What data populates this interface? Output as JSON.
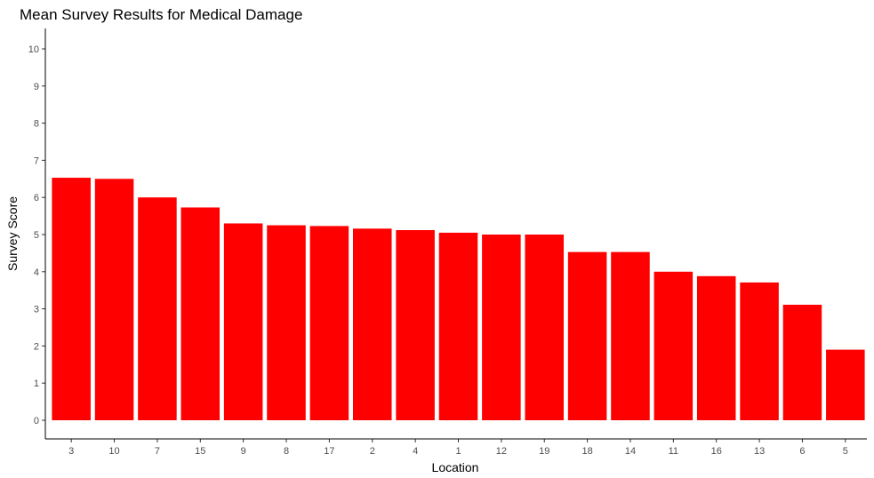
{
  "chart_data": {
    "type": "bar",
    "title": "Mean Survey Results for Medical Damage",
    "xlabel": "Location",
    "ylabel": "Survey Score",
    "ylim": [
      0,
      10
    ],
    "yticks": [
      0,
      1,
      2,
      3,
      4,
      5,
      6,
      7,
      8,
      9,
      10
    ],
    "categories": [
      "3",
      "10",
      "7",
      "15",
      "9",
      "8",
      "17",
      "2",
      "4",
      "1",
      "12",
      "19",
      "18",
      "14",
      "11",
      "16",
      "13",
      "6",
      "5"
    ],
    "values": [
      6.53,
      6.5,
      6.0,
      5.73,
      5.3,
      5.25,
      5.23,
      5.16,
      5.12,
      5.05,
      5.0,
      5.0,
      4.53,
      4.53,
      4.0,
      3.88,
      3.71,
      3.11,
      1.9
    ],
    "bar_color": "#ff0000",
    "grid": false,
    "legend": false
  }
}
